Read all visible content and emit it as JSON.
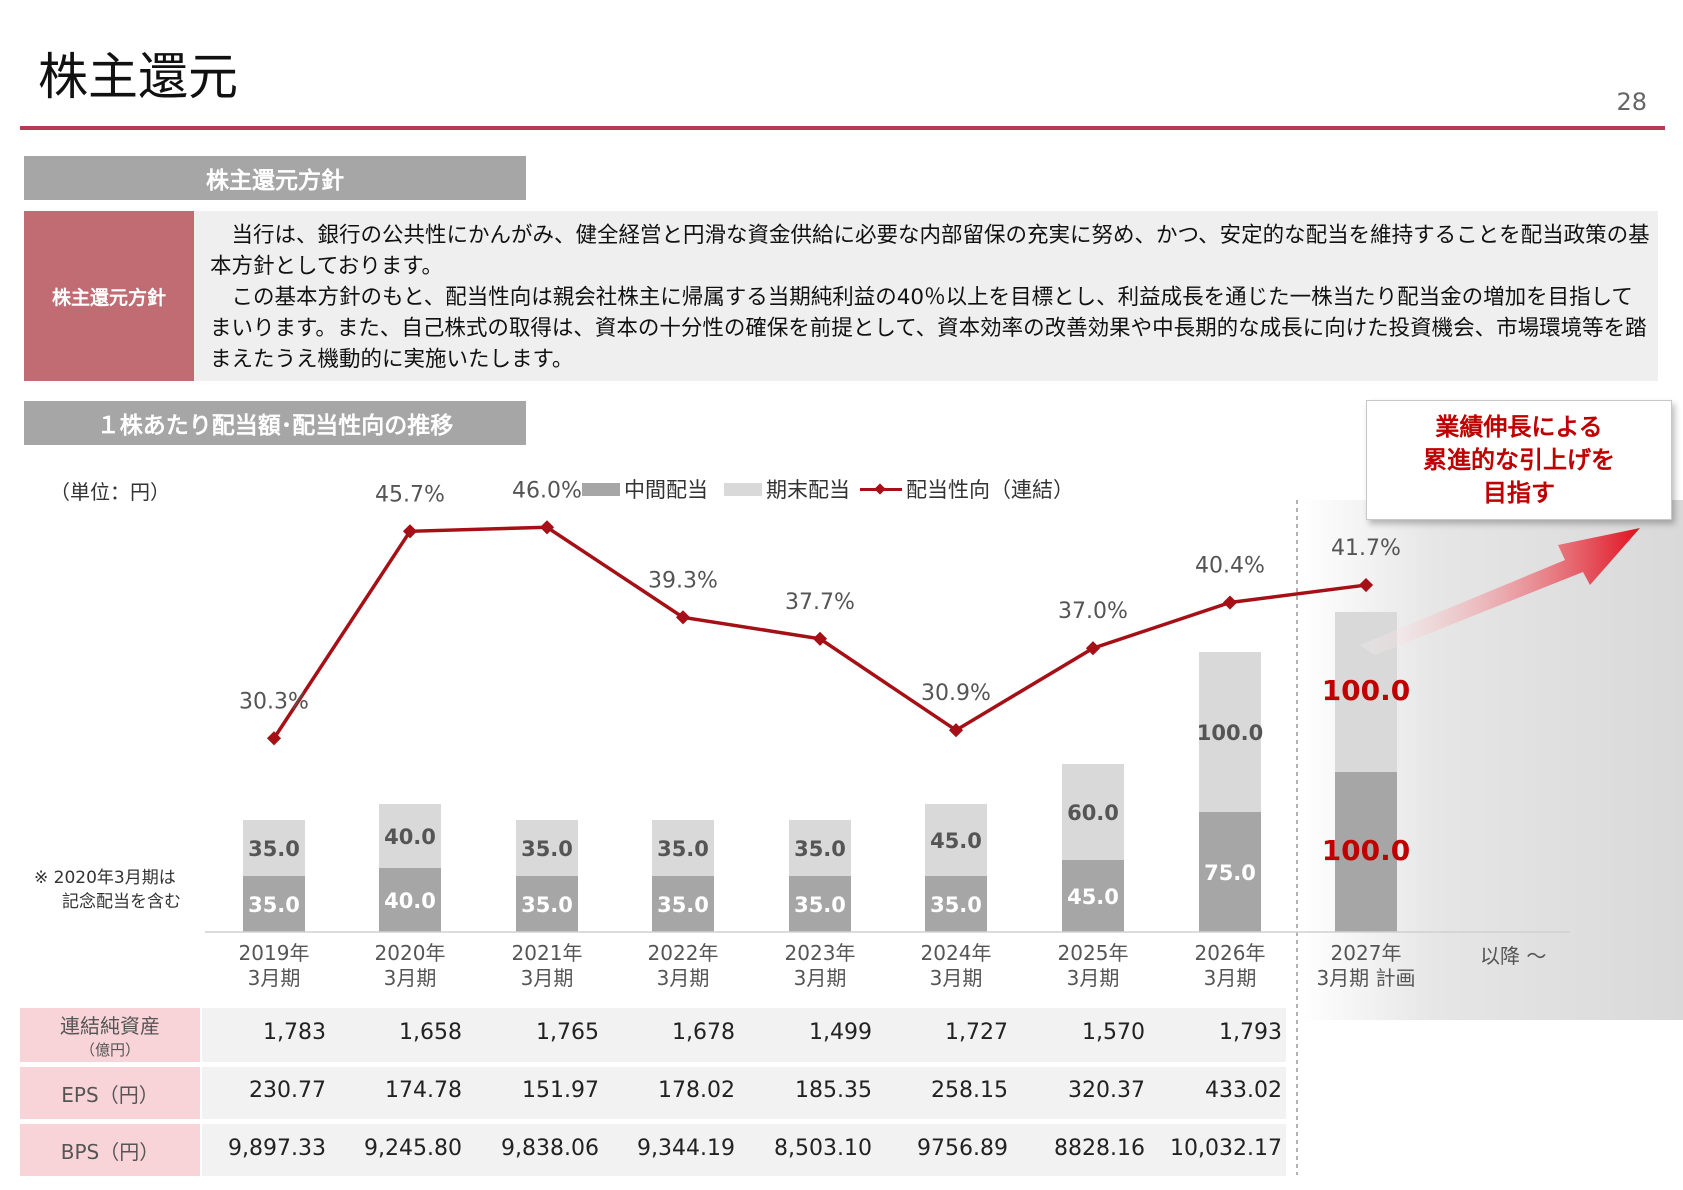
{
  "header": {
    "title": "株主還元",
    "page_number": "28"
  },
  "policy": {
    "section_title": "株主還元方針",
    "label": "株主還元方針",
    "paragraphs": [
      "当行は、銀行の公共性にかんがみ、健全経営と円滑な資金供給に必要な内部留保の充実に努め、かつ、安定的な配当を維持することを配当政策の基本方針としております。",
      "この基本方針のもと、配当性向は親会社株主に帰属する当期純利益の40％以上を目標とし、利益成長を通じた一株当たり配当金の増加を目指してまいります。また、自己株式の取得は、資本の十分性の確保を前提として、資本効率の改善効果や中長期的な成長に向けた投資機会、市場環境等を踏まえたうえ機動的に実施いたします。"
    ]
  },
  "chart_section": {
    "section_title": "１株あたり配当額･配当性向の推移",
    "unit": "（単位：円）",
    "note_line1": "※ 2020年3月期は",
    "note_line2": "記念配当を含む",
    "callout_lines": [
      "業績伸長による",
      "累進的な引上げを",
      "目指す"
    ],
    "after_label": "以降 〜"
  },
  "colors": {
    "interim": "#a6a6a6",
    "year_end": "#d9d9d9",
    "payout_line": "#a50f15",
    "plan_label": "#c00000",
    "accent_rule": "#b83a54"
  },
  "chart_data": {
    "type": "bar",
    "stacked": true,
    "categories": [
      [
        "2019年",
        "3月期"
      ],
      [
        "2020年",
        "3月期"
      ],
      [
        "2021年",
        "3月期"
      ],
      [
        "2022年",
        "3月期"
      ],
      [
        "2023年",
        "3月期"
      ],
      [
        "2024年",
        "3月期"
      ],
      [
        "2025年",
        "3月期"
      ],
      [
        "2026年",
        "3月期"
      ],
      [
        "2027年",
        "3月期 計画"
      ]
    ],
    "series": [
      {
        "name": "中間配当",
        "values": [
          35.0,
          40.0,
          35.0,
          35.0,
          35.0,
          35.0,
          45.0,
          75.0,
          100.0
        ]
      },
      {
        "name": "期末配当",
        "values": [
          35.0,
          40.0,
          35.0,
          35.0,
          35.0,
          45.0,
          60.0,
          100.0,
          100.0
        ]
      }
    ],
    "line_series": {
      "name": "配当性向（連結）",
      "values": [
        30.3,
        45.7,
        46.0,
        39.3,
        37.7,
        30.9,
        37.0,
        40.4,
        41.7
      ],
      "labels": [
        "30.3%",
        "45.7%",
        "46.0%",
        "39.3%",
        "37.7%",
        "30.9%",
        "37.0%",
        "40.4%",
        "41.7%"
      ]
    },
    "bar_labels": {
      "interim": [
        "35.0",
        "40.0",
        "35.0",
        "35.0",
        "35.0",
        "35.0",
        "45.0",
        "75.0",
        "100.0"
      ],
      "year_end": [
        "35.0",
        "40.0",
        "35.0",
        "35.0",
        "35.0",
        "45.0",
        "60.0",
        "100.0",
        "100.0"
      ]
    },
    "legend_position": "top"
  },
  "table": {
    "rows": [
      {
        "label": "連結純資産",
        "sublabel": "（億円）",
        "values": [
          "1,783",
          "1,658",
          "1,765",
          "1,678",
          "1,499",
          "1,727",
          "1,570",
          "1,793"
        ]
      },
      {
        "label": "EPS（円）",
        "sublabel": "",
        "values": [
          "230.77",
          "174.78",
          "151.97",
          "178.02",
          "185.35",
          "258.15",
          "320.37",
          "433.02"
        ]
      },
      {
        "label": "BPS（円）",
        "sublabel": "",
        "values": [
          "9,897.33",
          "9,245.80",
          "9,838.06",
          "9,344.19",
          "8,503.10",
          "9756.89",
          "8828.16",
          "10,032.17"
        ]
      }
    ]
  }
}
